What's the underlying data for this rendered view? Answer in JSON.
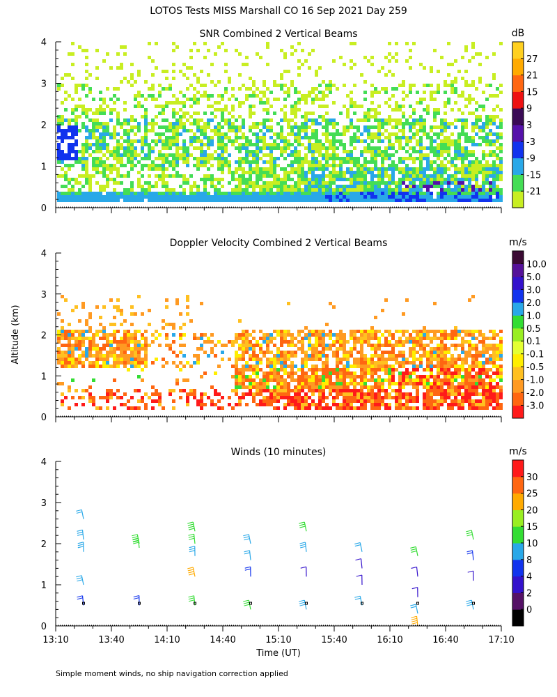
{
  "title": "LOTOS Tests MISS Marshall CO  16 Sep 2021 Day 259",
  "footnote": "Simple moment winds, no ship navigation correction applied",
  "shared_ylabel": "Altitude (km)",
  "chart_data": [
    {
      "type": "heatmap",
      "id": "snr",
      "title": "SNR Combined 2 Vertical Beams",
      "ylim": [
        0,
        4
      ],
      "yticks": [
        "0",
        "1",
        "2",
        "3",
        "4"
      ],
      "xlim_minutes_since_1310": [
        0,
        240
      ],
      "colorbar": {
        "unit": "dB",
        "labels": [
          "-21",
          "-15",
          "-9",
          "-3",
          "3",
          "9",
          "15",
          "21",
          "27"
        ],
        "colors": [
          "#c8ee22",
          "#44dd55",
          "#29a8e8",
          "#1133ee",
          "#5511aa",
          "#3a0a55",
          "#ee1111",
          "#ff6611",
          "#ffaa00",
          "#ffd020"
        ]
      },
      "profile_dB": [
        {
          "alt_km": 0.3,
          "db": -3
        },
        {
          "alt_km": 0.5,
          "db": -9
        },
        {
          "alt_km": 0.8,
          "db": -15
        },
        {
          "alt_km": 1.2,
          "db": -18
        },
        {
          "alt_km": 1.8,
          "db": -15
        },
        {
          "alt_km": 2.5,
          "db": -21
        },
        {
          "alt_km": 3.5,
          "db": -21
        }
      ]
    },
    {
      "type": "heatmap",
      "id": "doppler",
      "title": "Doppler Velocity Combined 2 Vertical Beams",
      "ylim": [
        0,
        4
      ],
      "yticks": [
        "0",
        "1",
        "2",
        "3",
        "4"
      ],
      "xlim_minutes_since_1310": [
        0,
        240
      ],
      "colorbar": {
        "unit": "m/s",
        "labels": [
          "-3.0",
          "-2.0",
          "-1.0",
          "-0.5",
          "-0.1",
          "0.1",
          "0.5",
          "1.0",
          "2.0",
          "3.0",
          "5.0",
          "10.0"
        ],
        "colors": [
          "#ff1a1a",
          "#ff6611",
          "#ff9a22",
          "#ffc020",
          "#ffee00",
          "#e4ff33",
          "#99ee22",
          "#33dd33",
          "#29a8e8",
          "#1133ee",
          "#3311cc",
          "#551199",
          "#3a0a33"
        ]
      },
      "mean_velocity_ms": -1.0
    },
    {
      "type": "scatter",
      "id": "winds",
      "title": "Winds (10 minutes)",
      "ylim": [
        0,
        4
      ],
      "yticks": [
        "0",
        "1",
        "2",
        "3",
        "4"
      ],
      "colorbar": {
        "unit": "m/s",
        "labels": [
          "0",
          "2",
          "4",
          "8",
          "10",
          "15",
          "20",
          "25",
          "30"
        ],
        "colors": [
          "#000000",
          "#551166",
          "#3311cc",
          "#1133ee",
          "#29a8e8",
          "#33dd33",
          "#99ee22",
          "#ffaa00",
          "#ff6611",
          "#ff1a1a"
        ]
      },
      "profiles": [
        {
          "time_min": 15,
          "barbs": [
            {
              "alt": 2.6,
              "speed": 12
            },
            {
              "alt": 2.1,
              "speed": 14
            },
            {
              "alt": 1.8,
              "speed": 13
            },
            {
              "alt": 1.0,
              "speed": 13
            },
            {
              "alt": 0.5,
              "speed": 9
            }
          ]
        },
        {
          "time_min": 45,
          "barbs": [
            {
              "alt": 2.0,
              "speed": 18
            },
            {
              "alt": 1.9,
              "speed": 17
            },
            {
              "alt": 0.5,
              "speed": 9
            }
          ]
        },
        {
          "time_min": 75,
          "barbs": [
            {
              "alt": 2.3,
              "speed": 18
            },
            {
              "alt": 2.0,
              "speed": 15
            },
            {
              "alt": 1.7,
              "speed": 14
            },
            {
              "alt": 1.2,
              "speed": 27
            },
            {
              "alt": 0.5,
              "speed": 15
            }
          ]
        },
        {
          "time_min": 105,
          "barbs": [
            {
              "alt": 2.0,
              "speed": 14
            },
            {
              "alt": 1.6,
              "speed": 10
            },
            {
              "alt": 1.2,
              "speed": 8
            },
            {
              "alt": 0.4,
              "speed": 15
            }
          ]
        },
        {
          "time_min": 135,
          "barbs": [
            {
              "alt": 2.3,
              "speed": 16
            },
            {
              "alt": 1.8,
              "speed": 14
            },
            {
              "alt": 1.2,
              "speed": 6
            },
            {
              "alt": 0.4,
              "speed": 14
            }
          ]
        },
        {
          "time_min": 165,
          "barbs": [
            {
              "alt": 1.8,
              "speed": 10
            },
            {
              "alt": 1.4,
              "speed": 6
            },
            {
              "alt": 1.0,
              "speed": 6
            },
            {
              "alt": 0.5,
              "speed": 12
            }
          ]
        },
        {
          "time_min": 195,
          "barbs": [
            {
              "alt": 1.7,
              "speed": 17
            },
            {
              "alt": 1.2,
              "speed": 6
            },
            {
              "alt": 0.7,
              "speed": 4
            },
            {
              "alt": 0.3,
              "speed": 10
            },
            {
              "alt": 0.0,
              "speed": 26
            }
          ]
        },
        {
          "time_min": 225,
          "barbs": [
            {
              "alt": 2.1,
              "speed": 15
            },
            {
              "alt": 1.6,
              "speed": 8
            },
            {
              "alt": 1.1,
              "speed": 6
            },
            {
              "alt": 0.4,
              "speed": 14
            }
          ]
        }
      ]
    }
  ],
  "x_axis": {
    "label": "Time (UT)",
    "ticks": [
      "13:10",
      "13:40",
      "14:10",
      "14:40",
      "15:10",
      "15:40",
      "16:10",
      "16:40",
      "17:10"
    ]
  }
}
